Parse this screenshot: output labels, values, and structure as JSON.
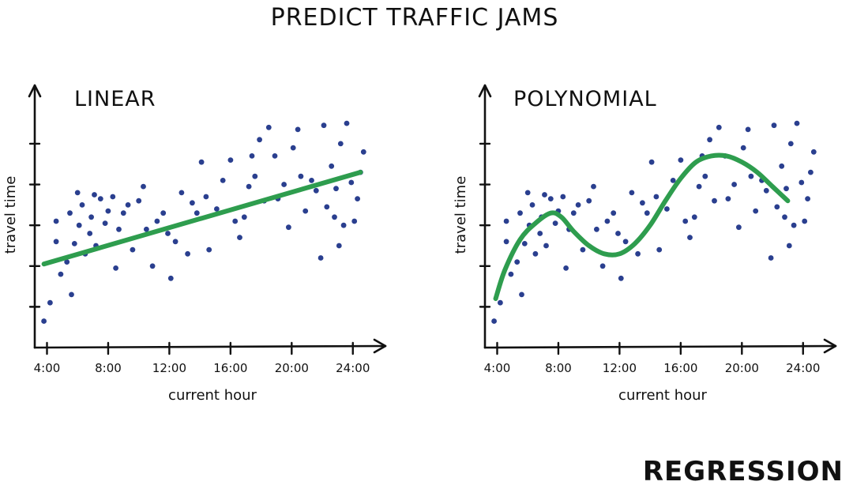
{
  "title": "PREDICT TRAFFIC JAMS",
  "footer_label": "REGRESSION",
  "colors": {
    "points": "#2a3f8f",
    "fit_line": "#2e9d4e",
    "ink": "#111111"
  },
  "chart_data": [
    {
      "type": "scatter",
      "title": "LINEAR",
      "xlabel": "current hour",
      "ylabel": "travel time",
      "x_tick_labels": [
        "4:00",
        "8:00",
        "12:00",
        "16:00",
        "20:00",
        "24:00"
      ],
      "x_ticks": [
        4,
        8,
        12,
        16,
        20,
        24
      ],
      "xlim": [
        3.2,
        25.2
      ],
      "ylim": [
        0,
        6.2
      ],
      "y_ticks": [
        1,
        2,
        3,
        4,
        5
      ],
      "y_tick_labels": [],
      "grid": false,
      "fit": {
        "kind": "linear",
        "x": [
          3.8,
          24.5
        ],
        "y": [
          2.05,
          4.3
        ]
      },
      "points": [
        [
          3.8,
          0.65
        ],
        [
          4.2,
          1.1
        ],
        [
          4.6,
          3.1
        ],
        [
          4.6,
          2.6
        ],
        [
          4.9,
          1.8
        ],
        [
          5.3,
          2.1
        ],
        [
          5.6,
          1.3
        ],
        [
          5.5,
          3.3
        ],
        [
          5.8,
          2.55
        ],
        [
          6.0,
          3.8
        ],
        [
          6.1,
          3.0
        ],
        [
          6.3,
          3.5
        ],
        [
          6.5,
          2.3
        ],
        [
          6.8,
          2.8
        ],
        [
          6.9,
          3.2
        ],
        [
          7.1,
          3.75
        ],
        [
          7.2,
          2.5
        ],
        [
          7.5,
          3.65
        ],
        [
          7.8,
          3.05
        ],
        [
          8.0,
          3.35
        ],
        [
          8.3,
          3.7
        ],
        [
          8.5,
          1.95
        ],
        [
          8.7,
          2.9
        ],
        [
          9.0,
          3.3
        ],
        [
          9.3,
          3.5
        ],
        [
          9.6,
          2.4
        ],
        [
          10.0,
          3.6
        ],
        [
          10.3,
          3.95
        ],
        [
          10.5,
          2.9
        ],
        [
          10.9,
          2.0
        ],
        [
          11.2,
          3.1
        ],
        [
          11.6,
          3.3
        ],
        [
          11.9,
          2.8
        ],
        [
          12.1,
          1.7
        ],
        [
          12.4,
          2.6
        ],
        [
          12.8,
          3.8
        ],
        [
          13.2,
          2.3
        ],
        [
          13.5,
          3.55
        ],
        [
          13.8,
          3.3
        ],
        [
          14.1,
          4.55
        ],
        [
          14.4,
          3.7
        ],
        [
          14.6,
          2.4
        ],
        [
          15.1,
          3.4
        ],
        [
          15.5,
          4.1
        ],
        [
          16.0,
          4.6
        ],
        [
          16.3,
          3.1
        ],
        [
          16.6,
          2.7
        ],
        [
          16.9,
          3.2
        ],
        [
          17.2,
          3.95
        ],
        [
          17.4,
          4.7
        ],
        [
          17.6,
          4.2
        ],
        [
          17.9,
          5.1
        ],
        [
          18.2,
          3.6
        ],
        [
          18.5,
          5.4
        ],
        [
          18.9,
          4.7
        ],
        [
          19.1,
          3.65
        ],
        [
          19.5,
          4.0
        ],
        [
          19.8,
          2.95
        ],
        [
          20.1,
          4.9
        ],
        [
          20.4,
          5.35
        ],
        [
          20.6,
          4.2
        ],
        [
          20.9,
          3.35
        ],
        [
          21.3,
          4.1
        ],
        [
          21.6,
          3.85
        ],
        [
          21.9,
          2.2
        ],
        [
          22.1,
          5.45
        ],
        [
          22.3,
          3.45
        ],
        [
          22.6,
          4.45
        ],
        [
          22.8,
          3.2
        ],
        [
          23.1,
          2.5
        ],
        [
          23.4,
          3.0
        ],
        [
          23.6,
          5.5
        ],
        [
          23.9,
          4.05
        ],
        [
          24.1,
          3.1
        ],
        [
          24.3,
          3.65
        ],
        [
          24.5,
          4.3
        ],
        [
          22.9,
          3.9
        ],
        [
          24.7,
          4.8
        ],
        [
          23.2,
          5.0
        ]
      ]
    },
    {
      "type": "scatter",
      "title": "POLYNOMIAL",
      "xlabel": "current hour",
      "ylabel": "travel time",
      "x_tick_labels": [
        "4:00",
        "8:00",
        "12:00",
        "16:00",
        "20:00",
        "24:00"
      ],
      "x_ticks": [
        4,
        8,
        12,
        16,
        20,
        24
      ],
      "xlim": [
        3.2,
        25.2
      ],
      "ylim": [
        0,
        6.2
      ],
      "y_ticks": [
        1,
        2,
        3,
        4,
        5
      ],
      "y_tick_labels": [],
      "grid": false,
      "fit": {
        "kind": "polynomial",
        "x": [
          3.9,
          4.5,
          5.5,
          6.5,
          7.5,
          8.2,
          9.0,
          10.0,
          11.0,
          12.0,
          13.0,
          14.0,
          15.0,
          16.0,
          17.0,
          18.0,
          19.0,
          20.0,
          21.0,
          22.0,
          23.0
        ],
        "y": [
          1.2,
          1.9,
          2.65,
          3.05,
          3.3,
          3.2,
          2.85,
          2.5,
          2.3,
          2.3,
          2.55,
          3.0,
          3.6,
          4.15,
          4.55,
          4.7,
          4.7,
          4.55,
          4.3,
          3.95,
          3.6
        ]
      },
      "points": [
        [
          3.8,
          0.65
        ],
        [
          4.2,
          1.1
        ],
        [
          4.6,
          3.1
        ],
        [
          4.6,
          2.6
        ],
        [
          4.9,
          1.8
        ],
        [
          5.3,
          2.1
        ],
        [
          5.6,
          1.3
        ],
        [
          5.5,
          3.3
        ],
        [
          5.8,
          2.55
        ],
        [
          6.0,
          3.8
        ],
        [
          6.1,
          3.0
        ],
        [
          6.3,
          3.5
        ],
        [
          6.5,
          2.3
        ],
        [
          6.8,
          2.8
        ],
        [
          6.9,
          3.2
        ],
        [
          7.1,
          3.75
        ],
        [
          7.2,
          2.5
        ],
        [
          7.5,
          3.65
        ],
        [
          7.8,
          3.05
        ],
        [
          8.0,
          3.35
        ],
        [
          8.3,
          3.7
        ],
        [
          8.5,
          1.95
        ],
        [
          8.7,
          2.9
        ],
        [
          9.0,
          3.3
        ],
        [
          9.3,
          3.5
        ],
        [
          9.6,
          2.4
        ],
        [
          10.0,
          3.6
        ],
        [
          10.3,
          3.95
        ],
        [
          10.5,
          2.9
        ],
        [
          10.9,
          2.0
        ],
        [
          11.2,
          3.1
        ],
        [
          11.6,
          3.3
        ],
        [
          11.9,
          2.8
        ],
        [
          12.1,
          1.7
        ],
        [
          12.4,
          2.6
        ],
        [
          12.8,
          3.8
        ],
        [
          13.2,
          2.3
        ],
        [
          13.5,
          3.55
        ],
        [
          13.8,
          3.3
        ],
        [
          14.1,
          4.55
        ],
        [
          14.4,
          3.7
        ],
        [
          14.6,
          2.4
        ],
        [
          15.1,
          3.4
        ],
        [
          15.5,
          4.1
        ],
        [
          16.0,
          4.6
        ],
        [
          16.3,
          3.1
        ],
        [
          16.6,
          2.7
        ],
        [
          16.9,
          3.2
        ],
        [
          17.2,
          3.95
        ],
        [
          17.4,
          4.7
        ],
        [
          17.6,
          4.2
        ],
        [
          17.9,
          5.1
        ],
        [
          18.2,
          3.6
        ],
        [
          18.5,
          5.4
        ],
        [
          18.9,
          4.7
        ],
        [
          19.1,
          3.65
        ],
        [
          19.5,
          4.0
        ],
        [
          19.8,
          2.95
        ],
        [
          20.1,
          4.9
        ],
        [
          20.4,
          5.35
        ],
        [
          20.6,
          4.2
        ],
        [
          20.9,
          3.35
        ],
        [
          21.3,
          4.1
        ],
        [
          21.6,
          3.85
        ],
        [
          21.9,
          2.2
        ],
        [
          22.1,
          5.45
        ],
        [
          22.3,
          3.45
        ],
        [
          22.6,
          4.45
        ],
        [
          22.8,
          3.2
        ],
        [
          23.1,
          2.5
        ],
        [
          23.4,
          3.0
        ],
        [
          23.6,
          5.5
        ],
        [
          23.9,
          4.05
        ],
        [
          24.1,
          3.1
        ],
        [
          24.3,
          3.65
        ],
        [
          24.5,
          4.3
        ],
        [
          22.9,
          3.9
        ],
        [
          24.7,
          4.8
        ],
        [
          23.2,
          5.0
        ]
      ]
    }
  ]
}
